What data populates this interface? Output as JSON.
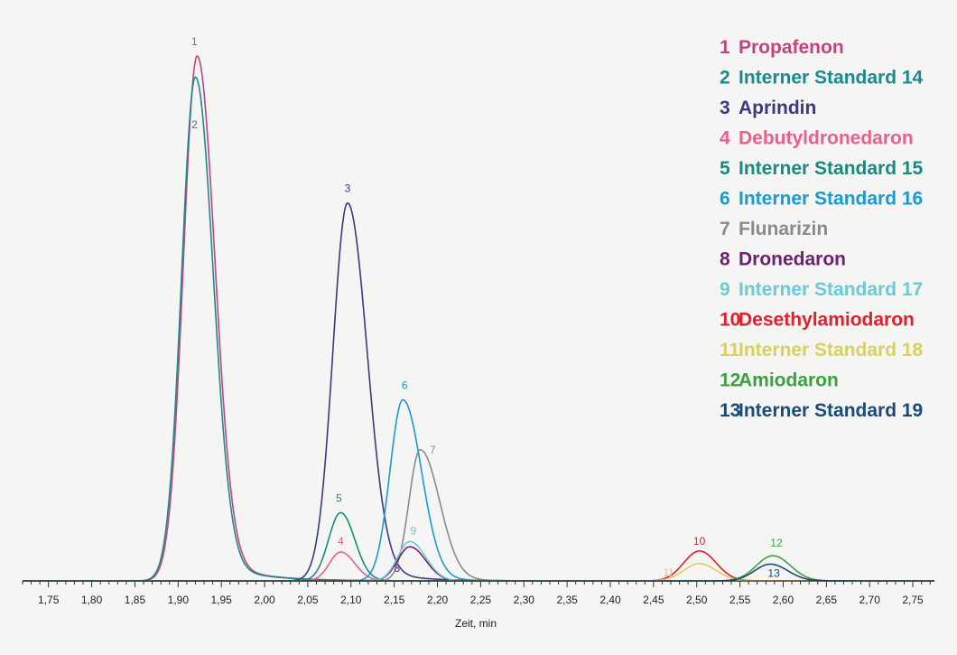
{
  "chart_data": {
    "type": "line",
    "xlabel": "Zeit, min",
    "ylabel": "",
    "title": "",
    "xlim": [
      1.72,
      2.775
    ],
    "ylim": [
      0,
      100
    ],
    "x_ticks": [
      "1,75",
      "1,80",
      "1,85",
      "1,90",
      "1,95",
      "2,00",
      "2,05",
      "2,10",
      "2,15",
      "2,20",
      "2,25",
      "2,30",
      "2,35",
      "2,40",
      "2,45",
      "2,50",
      "2,55",
      "2,60",
      "2,65",
      "2,70",
      "2,75"
    ],
    "legend_position": "top-right",
    "series": [
      {
        "id": "1",
        "name": "Propafenon",
        "color": "#c2447e",
        "peaks": [
          {
            "rt": 1.922,
            "height": 100,
            "sigma_left": 0.016,
            "sigma_right": 0.02,
            "tail": 0.045
          }
        ]
      },
      {
        "id": "2",
        "name": "Interner Standard 14",
        "color": "#1a8a8e",
        "peaks": [
          {
            "rt": 1.92,
            "height": 96,
            "sigma_left": 0.016,
            "sigma_right": 0.02,
            "tail": 0.045
          }
        ]
      },
      {
        "id": "3",
        "name": "Aprindin",
        "color": "#3a3a7e",
        "peaks": [
          {
            "rt": 2.096,
            "height": 72,
            "sigma_left": 0.017,
            "sigma_right": 0.022,
            "tail": 0.04
          }
        ]
      },
      {
        "id": "4",
        "name": "Debutyldronedaron",
        "color": "#e86090",
        "peaks": [
          {
            "rt": 2.088,
            "height": 5.5,
            "sigma_left": 0.013,
            "sigma_right": 0.016,
            "tail": 0.02
          }
        ]
      },
      {
        "id": "5",
        "name": "Interner Standard 15",
        "color": "#1a8a80",
        "peaks": [
          {
            "rt": 2.088,
            "height": 13,
            "sigma_left": 0.014,
            "sigma_right": 0.016,
            "tail": 0.02
          }
        ]
      },
      {
        "id": "6",
        "name": "Interner Standard 16",
        "color": "#1a9ad0",
        "peaks": [
          {
            "rt": 2.16,
            "height": 34.5,
            "sigma_left": 0.015,
            "sigma_right": 0.021,
            "tail": 0.03
          }
        ]
      },
      {
        "id": "7",
        "name": "Flunarizin",
        "color": "#8a8a8a",
        "peaks": [
          {
            "rt": 2.18,
            "height": 25,
            "sigma_left": 0.013,
            "sigma_right": 0.022,
            "tail": 0.03
          }
        ]
      },
      {
        "id": "8",
        "name": "Dronedaron",
        "color": "#6e2070",
        "peaks": [
          {
            "rt": 2.168,
            "height": 6.5,
            "sigma_left": 0.014,
            "sigma_right": 0.018,
            "tail": 0.02
          }
        ]
      },
      {
        "id": "9",
        "name": "Interner Standard 17",
        "color": "#6ccad4",
        "peaks": [
          {
            "rt": 2.168,
            "height": 7.5,
            "sigma_left": 0.014,
            "sigma_right": 0.018,
            "tail": 0.02
          }
        ]
      },
      {
        "id": "10",
        "name": "Desethylamiodaron",
        "color": "#e0202a",
        "peaks": [
          {
            "rt": 2.503,
            "height": 5.7,
            "sigma_left": 0.018,
            "sigma_right": 0.019,
            "tail": 0.02
          }
        ]
      },
      {
        "id": "11",
        "name": "Interner Standard 18",
        "color": "#d8d060",
        "peaks": [
          {
            "rt": 2.503,
            "height": 3.3,
            "sigma_left": 0.018,
            "sigma_right": 0.019,
            "tail": 0.02
          }
        ]
      },
      {
        "id": "12",
        "name": "Amiodaron",
        "color": "#3aa040",
        "peaks": [
          {
            "rt": 2.588,
            "height": 4.8,
            "sigma_left": 0.019,
            "sigma_right": 0.02,
            "tail": 0.02
          }
        ]
      },
      {
        "id": "13",
        "name": "Interner Standard 19",
        "color": "#1a4a78",
        "peaks": [
          {
            "rt": 2.585,
            "height": 3.2,
            "sigma_left": 0.018,
            "sigma_right": 0.02,
            "tail": 0.02
          }
        ]
      }
    ]
  }
}
